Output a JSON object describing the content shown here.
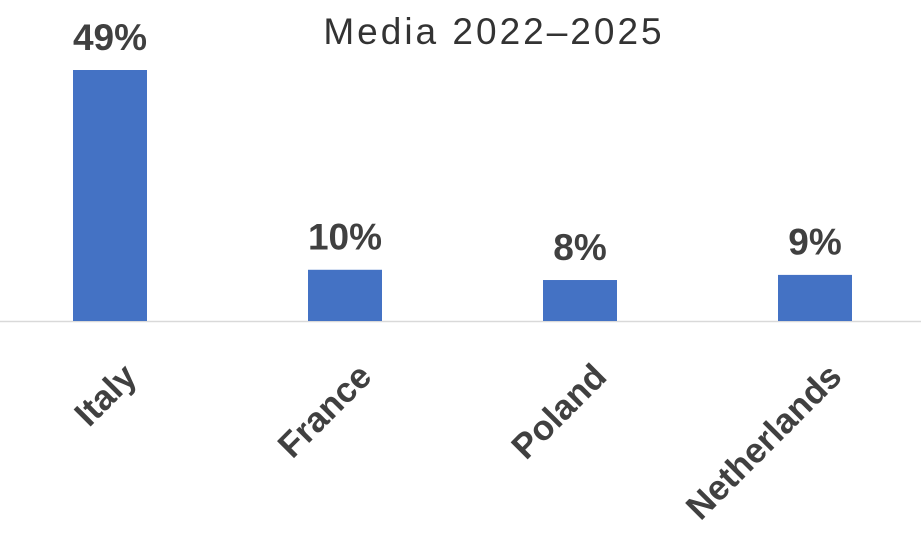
{
  "chart_data": {
    "type": "bar",
    "title": "Media 2022–2025",
    "categories": [
      "Italy",
      "France",
      "Poland",
      "Netherlands"
    ],
    "values": [
      49,
      10,
      8,
      9
    ],
    "value_labels": [
      "49%",
      "10%",
      "8%",
      "9%"
    ],
    "color": "#4472c4"
  }
}
